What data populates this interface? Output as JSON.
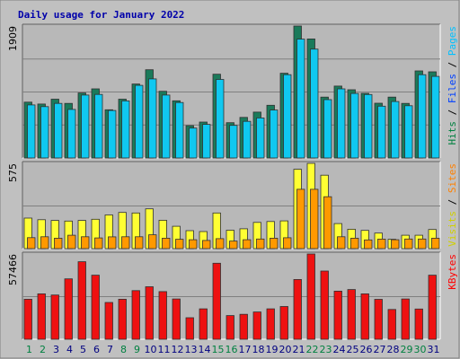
{
  "chart_data": {
    "type": "bar",
    "title": "Daily usage for January 2022",
    "categories": [
      "1",
      "2",
      "3",
      "4",
      "5",
      "6",
      "7",
      "8",
      "9",
      "10",
      "11",
      "12",
      "13",
      "14",
      "15",
      "16",
      "17",
      "18",
      "19",
      "20",
      "21",
      "22",
      "23",
      "24",
      "25",
      "26",
      "27",
      "28",
      "29",
      "30",
      "31"
    ],
    "weekend_days": [
      "1",
      "2",
      "8",
      "9",
      "15",
      "16",
      "22",
      "23",
      "29",
      "30"
    ],
    "colors": {
      "background": "#c0c0c0",
      "plot": "#b8b8b8",
      "title": "#0000aa",
      "hits": "#008040",
      "files": "#0040ff",
      "pages": "#00c0ff",
      "visits": "#ffff00",
      "sites": "#ff8000",
      "kbytes": "#ff0000",
      "weekend": "#008040",
      "weekday": "#000080"
    },
    "panels": [
      {
        "id": "hits",
        "scale_label": "1909",
        "ymax": 1909,
        "legend": [
          {
            "text": "Hits",
            "color": "#008040"
          },
          {
            "text": " / ",
            "color": "#000000"
          },
          {
            "text": "Files",
            "color": "#0040ff"
          },
          {
            "text": " / ",
            "color": "#000000"
          },
          {
            "text": "Pages",
            "color": "#00c0ff"
          }
        ],
        "series": [
          {
            "name": "Hits",
            "color": "#1a7a5a",
            "values": [
              808,
              781,
              850,
              790,
              940,
              1000,
              698,
              850,
              1070,
              1276,
              965,
              827,
              467,
              520,
              1211,
              510,
              587,
              663,
              762,
              1226,
              1909,
              1722,
              880,
              1040,
              987,
              935,
              792,
              880,
              790,
              1260,
              1247
            ]
          },
          {
            "name": "Pages",
            "color": "#10c8f0",
            "values": [
              768,
              743,
              790,
              703,
              910,
              920,
              687,
              826,
              1050,
              1144,
              910,
              802,
              433,
              486,
              1136,
              471,
              530,
              579,
              694,
              1205,
              1720,
              1575,
              844,
              1000,
              934,
              918,
              749,
              817,
              756,
              1205,
              1180
            ]
          }
        ]
      },
      {
        "id": "visits",
        "scale_label": "575",
        "ymax": 575,
        "legend": [
          {
            "text": "Visits",
            "color": "#d0d000"
          },
          {
            "text": " / ",
            "color": "#000000"
          },
          {
            "text": "Sites",
            "color": "#ff8000"
          }
        ],
        "series": [
          {
            "name": "Visits",
            "color": "#ffff33",
            "values": [
              206,
              195,
              190,
              186,
              190,
              198,
              227,
              244,
              240,
              268,
              191,
              151,
              121,
              115,
              240,
              124,
              134,
              177,
              183,
              187,
              535,
              575,
              495,
              169,
              131,
              123,
              105,
              63,
              90,
              90,
              129
            ]
          },
          {
            "name": "Sites",
            "color": "#ff9900",
            "values": [
              74,
              80,
              70,
              90,
              80,
              72,
              79,
              80,
              80,
              93,
              70,
              63,
              60,
              55,
              67,
              51,
              60,
              65,
              70,
              73,
              400,
              400,
              350,
              80,
              70,
              59,
              64,
              60,
              65,
              65,
              70
            ]
          }
        ]
      },
      {
        "id": "kbytes",
        "scale_label": "57466",
        "ymax": 57466,
        "legend": [
          {
            "text": "KBytes",
            "color": "#ff0000"
          }
        ],
        "series": [
          {
            "name": "KBytes",
            "color": "#ee1111",
            "values": [
              26970,
              30600,
              29800,
              40700,
              52250,
              43200,
              24800,
              27000,
              32800,
              35400,
              32150,
              27150,
              14500,
              20500,
              51250,
              15950,
              16800,
              18400,
              20500,
              22100,
              40300,
              57466,
              46000,
              32400,
              33500,
              30600,
              26900,
              20100,
              27150,
              20400,
              43200
            ]
          }
        ]
      }
    ]
  }
}
